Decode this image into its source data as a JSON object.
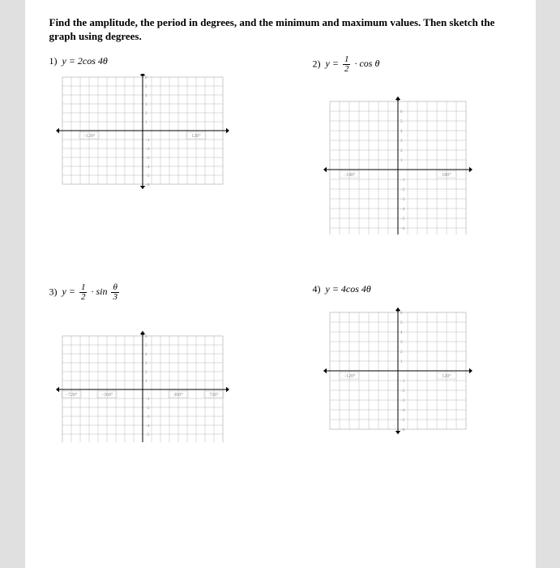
{
  "instructions": "Find the amplitude, the period in degrees, and the minimum and maximum values.  Then sketch the graph using degrees.",
  "problems": {
    "p1": {
      "number": "1)",
      "equation_prefix": "y = 2cos 4",
      "theta": "θ",
      "xneg_label": "−120°",
      "xpos_label": "120°",
      "ytick_labels": [
        "6",
        "5",
        "4",
        "3",
        "2",
        "1",
        "−1",
        "−2",
        "−3",
        "−4",
        "−5",
        "−6"
      ]
    },
    "p2": {
      "number": "2)",
      "equation_prefix": "y =",
      "frac_n": "1",
      "frac_d": "2",
      "equation_suffix": "· cos ",
      "theta": "θ",
      "xneg_label": "−180°",
      "xpos_label": "180°",
      "ytick_labels": [
        "6",
        "5",
        "4",
        "3",
        "2",
        "1",
        "−1",
        "−2",
        "−3",
        "−4",
        "−5",
        "−6"
      ]
    },
    "p3": {
      "number": "3)",
      "equation_prefix": "y =",
      "frac1_n": "1",
      "frac1_d": "2",
      "equation_mid": "· sin ",
      "frac2_n": "θ",
      "frac2_d": "3",
      "x_labels": [
        "−720°",
        "−360°",
        "360°",
        "720°"
      ],
      "ytick_labels": [
        "6",
        "5",
        "4",
        "3",
        "2",
        "1",
        "−1",
        "−2",
        "−3",
        "−4",
        "−5",
        "−6"
      ]
    },
    "p4": {
      "number": "4)",
      "equation_prefix": "y = 4cos 4",
      "theta": "θ",
      "xneg_label": "−120°",
      "xpos_label": "120°",
      "ytick_labels": [
        "6",
        "5",
        "4",
        "3",
        "2",
        "1",
        "−1",
        "−2",
        "−3",
        "−4",
        "−5",
        "−6"
      ]
    }
  },
  "grid_style": {
    "line_color": "#b8b8b8",
    "axis_color": "#000000",
    "label_color": "#888888",
    "label_fontsize": 6,
    "ytick_fontsize": 5
  }
}
